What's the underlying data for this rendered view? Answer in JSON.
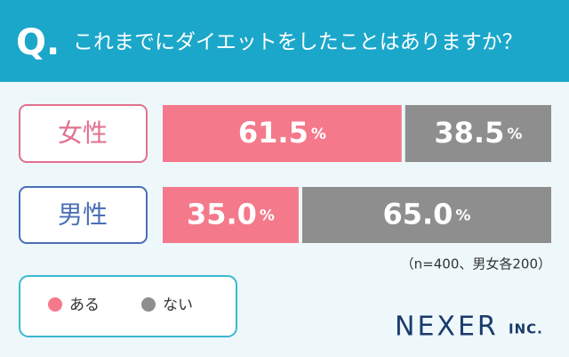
{
  "chart_data": {
    "type": "stacked-bar-100",
    "title_prefix": "Q.",
    "title": "これまでにダイエットをしたことはありますか？",
    "categories": [
      "女性",
      "男性"
    ],
    "category_colors": [
      "#e0708e",
      "#4a6fb5"
    ],
    "series": [
      {
        "name": "ある",
        "color": "#f47a8b",
        "values": [
          61.5,
          35.0
        ],
        "value_labels": [
          "61.5",
          "35.0"
        ]
      },
      {
        "name": "ない",
        "color": "#8e8e8e",
        "values": [
          38.5,
          65.0
        ],
        "value_labels": [
          "38.5",
          "65.0"
        ]
      }
    ],
    "unit": "%",
    "xlim": [
      0,
      100
    ],
    "note": "（n=400、男女各200）",
    "brand_name": "NEXER",
    "brand_suffix": "INC."
  }
}
